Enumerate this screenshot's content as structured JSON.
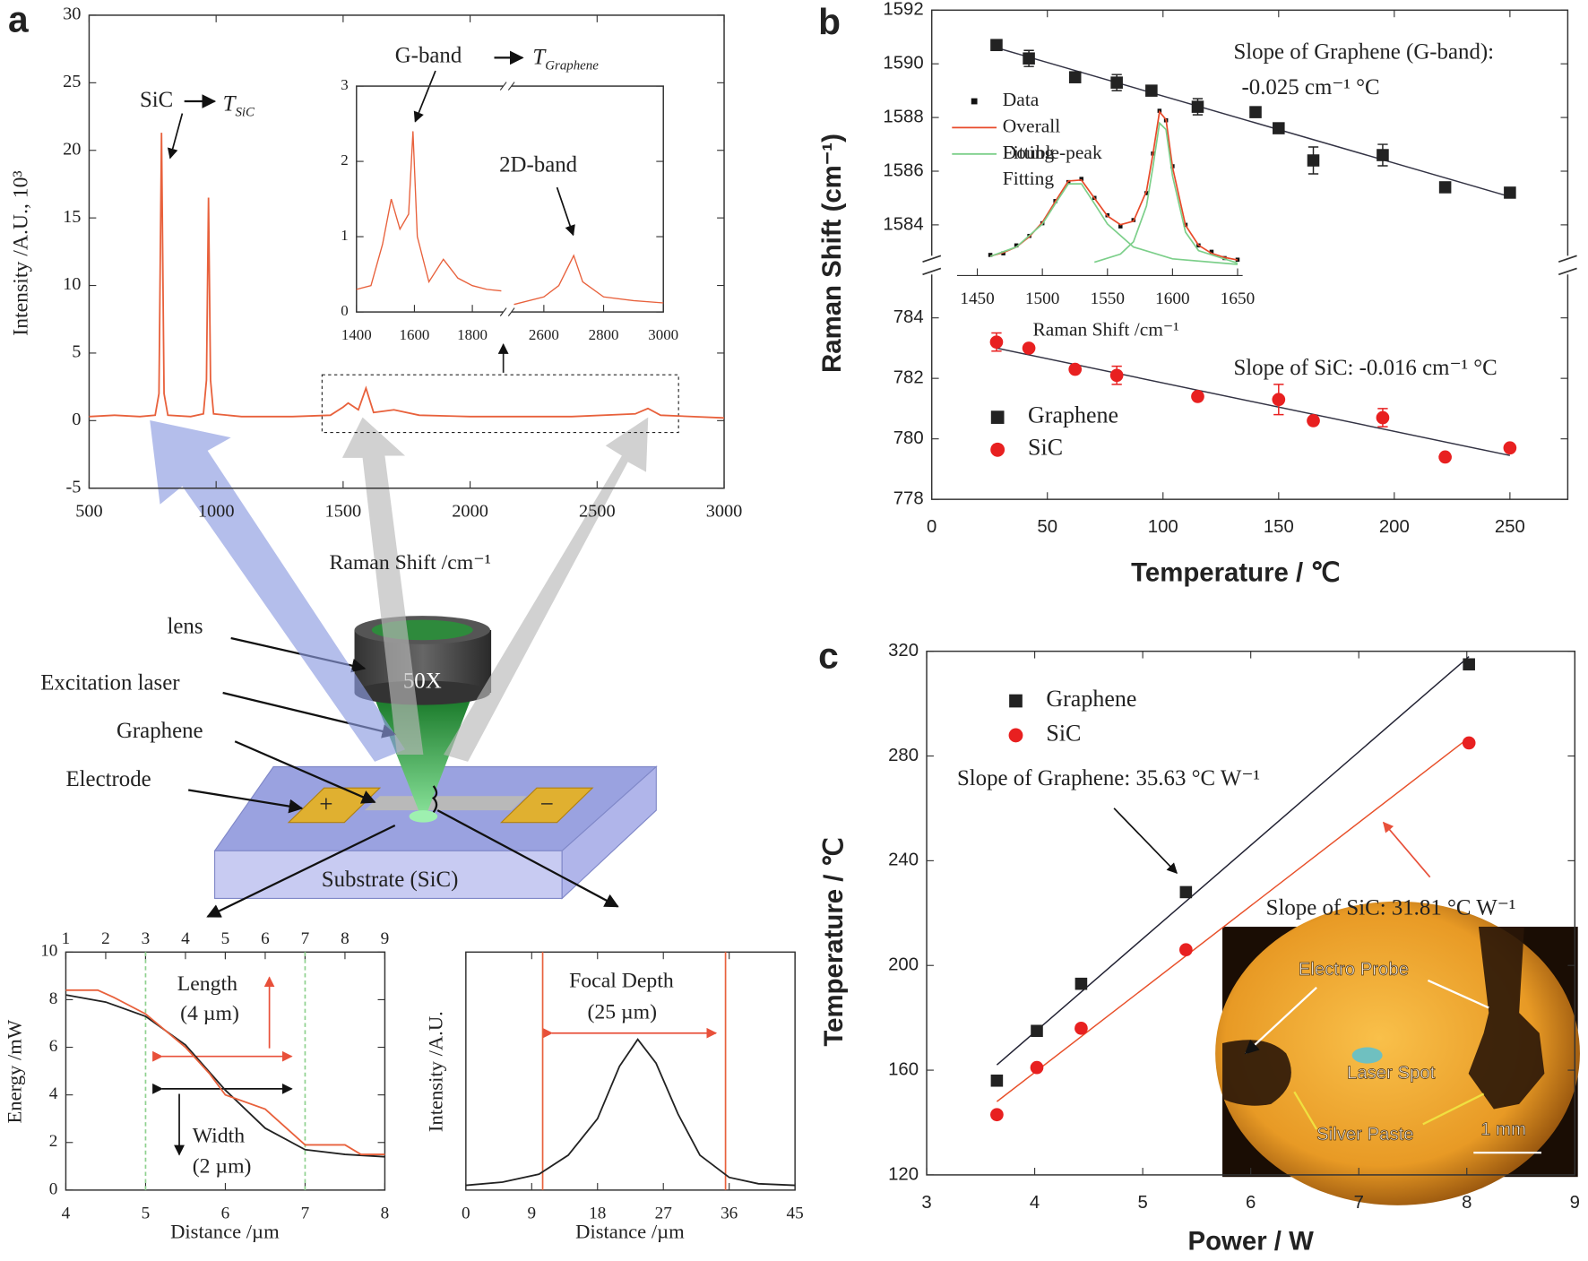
{
  "panels": [
    "a",
    "b",
    "c"
  ],
  "diagram": {
    "labels": [
      "lens",
      "Excitation laser",
      "Graphene",
      "Electrode"
    ],
    "objective": "50X",
    "plus": "+",
    "minus": "−",
    "substrate": "Substrate (SiC)"
  },
  "chart_data": [
    {
      "type": "line",
      "xlabel": "Raman Shift /cm⁻¹",
      "ylabel": "Intensity /A.U., 10³",
      "xlim": [
        500,
        3000
      ],
      "xticks": [
        500,
        1000,
        1500,
        2000,
        2500,
        3000
      ],
      "ylim": [
        -5,
        30
      ],
      "yticks": [
        -5,
        0,
        5,
        10,
        15,
        20,
        25,
        30
      ],
      "annotations": [
        {
          "text": "SiC"
        },
        {
          "text": "T",
          "sub": "SiC"
        }
      ],
      "series": [
        {
          "color": "#e8613c",
          "x": [
            500,
            600,
            700,
            760,
            775,
            785,
            795,
            810,
            900,
            950,
            962,
            970,
            978,
            990,
            1100,
            1300,
            1450,
            1500,
            1520,
            1560,
            1590,
            1620,
            1700,
            1800,
            2000,
            2400,
            2650,
            2700,
            2750,
            3000
          ],
          "values": [
            0.3,
            0.4,
            0.3,
            0.4,
            2,
            21.3,
            2,
            0.4,
            0.3,
            0.5,
            3,
            16.5,
            3,
            0.5,
            0.3,
            0.3,
            0.4,
            1.0,
            1.3,
            0.8,
            2.4,
            0.6,
            0.8,
            0.4,
            0.3,
            0.3,
            0.5,
            0.9,
            0.4,
            0.2
          ]
        }
      ]
    },
    {
      "type": "line",
      "ylim": [
        0,
        3
      ],
      "yticks": [
        0,
        1,
        2,
        3
      ],
      "color": "#e8613c",
      "annotations": [
        {
          "text": "G-band"
        },
        {
          "text": "T",
          "sub": "Graphene"
        },
        {
          "text": "2D-band"
        }
      ],
      "segments": [
        {
          "xlim": [
            1400,
            1900
          ],
          "xticks": [
            1400,
            1600,
            1800
          ],
          "x": [
            1400,
            1450,
            1490,
            1520,
            1550,
            1580,
            1595,
            1610,
            1650,
            1700,
            1750,
            1800,
            1850,
            1900
          ],
          "values": [
            0.3,
            0.35,
            0.9,
            1.5,
            1.1,
            1.3,
            2.4,
            1.0,
            0.4,
            0.7,
            0.45,
            0.35,
            0.3,
            0.28
          ]
        },
        {
          "xlim": [
            2500,
            3000
          ],
          "xticks": [
            2600,
            2800,
            3000
          ],
          "x": [
            2500,
            2600,
            2650,
            2700,
            2730,
            2800,
            2900,
            3000
          ],
          "values": [
            0.1,
            0.2,
            0.35,
            0.75,
            0.4,
            0.2,
            0.15,
            0.12
          ]
        }
      ]
    },
    {
      "type": "line",
      "xlabel": "Distance /µm",
      "ylabel": "Energy /mW",
      "xlim": [
        4,
        8
      ],
      "xticks": [
        4,
        5,
        6,
        7,
        8
      ],
      "x2lim": [
        1,
        9
      ],
      "x2ticks": [
        1,
        2,
        3,
        4,
        5,
        6,
        7,
        8,
        9
      ],
      "ylim": [
        0,
        10
      ],
      "yticks": [
        0,
        2,
        4,
        6,
        8,
        10
      ],
      "vlines": [
        5,
        7
      ],
      "vline_color": "#8fd18f",
      "annotations": [
        "Length",
        "(4 µm)",
        "Width",
        "(2 µm)"
      ],
      "series": [
        {
          "color": "#222",
          "x": [
            4,
            4.5,
            5,
            5.5,
            6,
            6.5,
            7,
            7.5,
            8
          ],
          "values": [
            8.2,
            7.9,
            7.3,
            6.1,
            4.2,
            2.6,
            1.7,
            1.5,
            1.4
          ]
        },
        {
          "color": "#e8613c",
          "x": [
            4,
            4.4,
            4.6,
            5,
            5.5,
            5.8,
            6,
            6.5,
            7,
            7.5,
            7.7,
            8
          ],
          "values": [
            8.4,
            8.4,
            8.1,
            7.4,
            6.0,
            4.9,
            4.0,
            3.4,
            1.9,
            1.9,
            1.5,
            1.5
          ]
        }
      ]
    },
    {
      "type": "line",
      "xlabel": "Distance /µm",
      "ylabel": "Intensity /A.U.",
      "xlim": [
        0,
        45
      ],
      "xticks": [
        0,
        9,
        18,
        27,
        36,
        45
      ],
      "ylim": [
        0,
        1.5
      ],
      "vlines": [
        10.5,
        35.5
      ],
      "vline_color": "#e8613c",
      "annotations": [
        "Focal Depth",
        "(25 µm)"
      ],
      "series": [
        {
          "color": "#222",
          "x": [
            0,
            5,
            10,
            14,
            18,
            21,
            23.5,
            26,
            29,
            32,
            36,
            40,
            45
          ],
          "values": [
            0.03,
            0.05,
            0.1,
            0.22,
            0.45,
            0.78,
            0.95,
            0.8,
            0.48,
            0.22,
            0.08,
            0.04,
            0.03
          ]
        }
      ]
    },
    {
      "type": "scatter",
      "xlabel": "Temperature / ℃",
      "ylabel": "Raman Shift (cm⁻¹)",
      "xlim": [
        0,
        275
      ],
      "xticks": [
        0,
        50,
        100,
        150,
        200,
        250
      ],
      "ylim": [
        1583,
        1592
      ],
      "yticks": [
        1584,
        1586,
        1588,
        1590,
        1592
      ],
      "ylim_lower": [
        778,
        785.3
      ],
      "yticks_lower": [
        778,
        780,
        782,
        784
      ],
      "legend": "lower left",
      "annotations": [
        "Slope of Graphene (G-band):",
        "-0.025 cm⁻¹ °C",
        "Slope of SiC: -0.016 cm⁻¹ °C"
      ],
      "series": [
        {
          "name": "Graphene",
          "color": "#222",
          "marker": "square",
          "x": [
            28,
            42,
            62,
            80,
            95,
            115,
            140,
            150,
            165,
            195,
            222,
            250
          ],
          "values": [
            1590.7,
            1590.2,
            1589.5,
            1589.3,
            1589.0,
            1588.4,
            1588.2,
            1587.6,
            1586.4,
            1586.6,
            1585.4,
            1585.2
          ],
          "errors": [
            0.1,
            0.3,
            0.1,
            0.3,
            0.1,
            0.3,
            0.1,
            0.1,
            0.5,
            0.4,
            0.1,
            0.1
          ],
          "fit": {
            "color": "#334",
            "x": [
              28,
              250
            ],
            "values": [
              1590.6,
              1585.05
            ]
          }
        },
        {
          "name": "SiC",
          "color": "#e82020",
          "marker": "circle",
          "axis": "lower",
          "x": [
            28,
            42,
            62,
            80,
            115,
            150,
            165,
            195,
            222,
            250
          ],
          "values": [
            783.2,
            783.0,
            782.3,
            782.1,
            781.4,
            781.3,
            780.6,
            780.7,
            779.4,
            779.7
          ],
          "errors": [
            0.3,
            0.1,
            0.1,
            0.3,
            0.1,
            0.5,
            0.1,
            0.3,
            0.1,
            0.1
          ],
          "fit": {
            "color": "#334",
            "x": [
              28,
              250
            ],
            "values": [
              783.0,
              779.45
            ]
          }
        }
      ]
    },
    {
      "type": "line",
      "xlabel": "Raman Shift /cm⁻¹",
      "xlim": [
        1450,
        1650
      ],
      "xticks": [
        1450,
        1500,
        1550,
        1600,
        1650
      ],
      "ylim": [
        0,
        1.1
      ],
      "legend": "upper left",
      "series": [
        {
          "name": "Data",
          "color": "#111",
          "marker": "square",
          "x": [
            1460,
            1470,
            1480,
            1490,
            1500,
            1510,
            1520,
            1530,
            1540,
            1550,
            1560,
            1570,
            1580,
            1585,
            1590,
            1595,
            1600,
            1610,
            1620,
            1630,
            1640,
            1650
          ],
          "values": [
            0.13,
            0.14,
            0.19,
            0.25,
            0.33,
            0.47,
            0.59,
            0.61,
            0.49,
            0.38,
            0.31,
            0.35,
            0.52,
            0.77,
            1.04,
            0.98,
            0.69,
            0.32,
            0.19,
            0.15,
            0.11,
            0.1
          ]
        },
        {
          "name": "Overall Fitting",
          "color": "#e84a2a",
          "x": [
            1460,
            1470,
            1480,
            1490,
            1500,
            1510,
            1520,
            1530,
            1540,
            1550,
            1560,
            1570,
            1580,
            1585,
            1590,
            1595,
            1600,
            1610,
            1620,
            1630,
            1640,
            1650
          ],
          "values": [
            0.122,
            0.145,
            0.18,
            0.245,
            0.336,
            0.468,
            0.597,
            0.603,
            0.488,
            0.376,
            0.321,
            0.343,
            0.533,
            0.769,
            1.034,
            0.984,
            0.684,
            0.317,
            0.191,
            0.14,
            0.114,
            0.098
          ]
        },
        {
          "name": "Double-peak Fitting",
          "color": "#7ccf8a",
          "x": [
            1460,
            1480,
            1500,
            1510,
            1520,
            1530,
            1540,
            1550,
            1570,
            1600,
            1650,
            null,
            1540,
            1560,
            1570,
            1580,
            1585,
            1590,
            1595,
            1600,
            1610,
            1620,
            1650
          ],
          "values": [
            0.121,
            0.18,
            0.325,
            0.454,
            0.579,
            0.579,
            0.454,
            0.325,
            0.18,
            0.105,
            0.07,
            null,
            0.084,
            0.135,
            0.213,
            0.439,
            0.688,
            0.963,
            0.922,
            0.629,
            0.274,
            0.157,
            0.078
          ]
        }
      ]
    },
    {
      "type": "scatter",
      "xlabel": "Power / W",
      "ylabel": "Temperature / ℃",
      "xlim": [
        3,
        9
      ],
      "xticks": [
        3,
        4,
        5,
        6,
        7,
        8,
        9
      ],
      "ylim": [
        120,
        320
      ],
      "yticks": [
        120,
        160,
        200,
        240,
        280,
        320
      ],
      "legend": "upper left",
      "annotations": [
        "Slope of Graphene: 35.63 °C W⁻¹",
        "Slope of SiC: 31.81 °C W⁻¹"
      ],
      "photo_labels": [
        "Electro Probe",
        "Laser Spot",
        "Silver Paste",
        "1 mm"
      ],
      "series": [
        {
          "name": "Graphene",
          "color": "#222",
          "marker": "square",
          "x": [
            3.65,
            4.02,
            4.43,
            5.4,
            8.02
          ],
          "values": [
            156,
            175,
            193,
            228,
            315
          ],
          "fit": {
            "color": "#223",
            "x": [
              3.65,
              8.02
            ],
            "values": [
              162,
              318
            ]
          }
        },
        {
          "name": "SiC",
          "color": "#e82020",
          "marker": "circle",
          "x": [
            3.65,
            4.02,
            4.43,
            5.4,
            8.02
          ],
          "values": [
            143,
            161,
            176,
            206,
            285
          ],
          "fit": {
            "color": "#e8502a",
            "x": [
              3.65,
              8.02
            ],
            "values": [
              148,
              287
            ]
          }
        }
      ]
    }
  ]
}
